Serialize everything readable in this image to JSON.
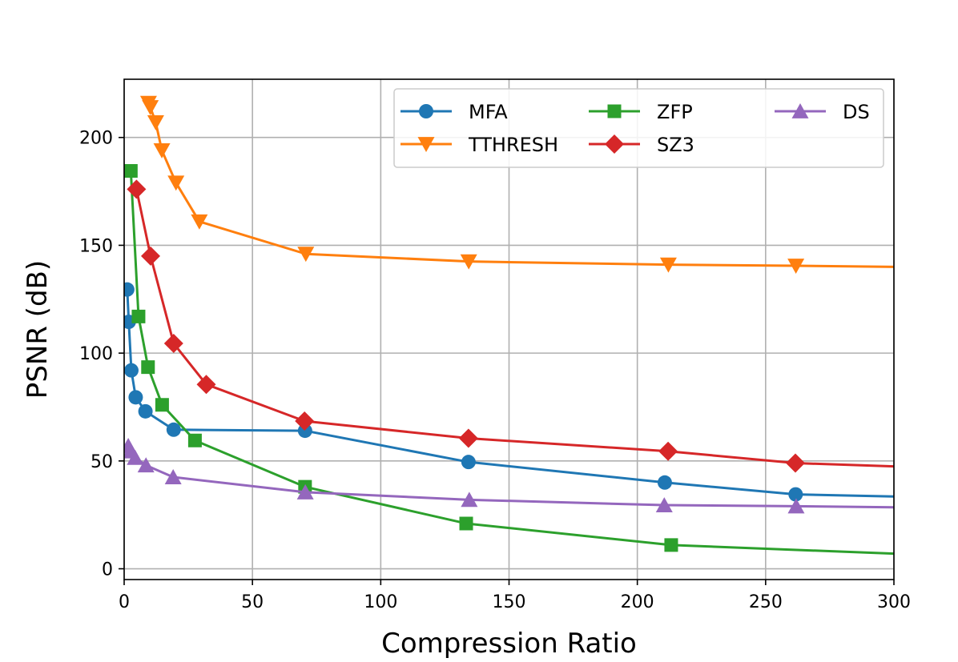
{
  "chart_data": {
    "type": "line",
    "title": "",
    "xlabel": "Compression Ratio",
    "ylabel": "PSNR (dB)",
    "xlim": [
      0,
      300
    ],
    "ylim": [
      -5,
      227
    ],
    "xticks": [
      0,
      50,
      100,
      150,
      200,
      250,
      300
    ],
    "yticks": [
      0,
      50,
      100,
      150,
      200
    ],
    "grid": true,
    "legend_position": "top-right",
    "legend_columns": 3,
    "series": [
      {
        "name": "MFA",
        "color": "#1f77b4",
        "marker": "circle",
        "x": [
          1.2,
          1.8,
          2.8,
          4.5,
          8.3,
          19.3,
          70.5,
          134.2,
          210.7,
          261.7,
          300
        ],
        "y": [
          129.5,
          114.5,
          92,
          79.5,
          73,
          64.5,
          64,
          49.5,
          40,
          34.5,
          33.5
        ],
        "markers_shown": [
          true,
          true,
          true,
          true,
          true,
          true,
          true,
          true,
          true,
          true,
          false
        ]
      },
      {
        "name": "TTHRESH",
        "color": "#ff7f0e",
        "marker": "triangle-down",
        "x": [
          9.5,
          10.2,
          12.3,
          14.7,
          20.2,
          29.3,
          70.8,
          134.3,
          212.1,
          261.8,
          300
        ],
        "y": [
          216,
          214,
          207,
          194,
          179,
          161,
          146,
          142.5,
          141,
          140.5,
          140
        ],
        "markers_shown": [
          true,
          true,
          true,
          true,
          true,
          true,
          true,
          true,
          true,
          true,
          false
        ]
      },
      {
        "name": "ZFP",
        "color": "#2ca02c",
        "marker": "square",
        "x": [
          2.6,
          5.6,
          9.3,
          14.8,
          27.6,
          70.5,
          133.3,
          213.2,
          300
        ],
        "y": [
          184.5,
          117,
          93.5,
          76,
          59.5,
          38,
          21,
          11,
          7
        ],
        "markers_shown": [
          true,
          true,
          true,
          true,
          true,
          true,
          true,
          true,
          false
        ]
      },
      {
        "name": "SZ3",
        "color": "#d62728",
        "marker": "diamond",
        "x": [
          4.8,
          10.3,
          19.3,
          32.0,
          70.3,
          134.2,
          212.0,
          261.6,
          300
        ],
        "y": [
          176,
          145,
          104.5,
          85.5,
          68.5,
          60.5,
          54.5,
          49,
          47.5
        ],
        "markers_shown": [
          true,
          true,
          true,
          true,
          true,
          true,
          true,
          true,
          false
        ]
      },
      {
        "name": "DS",
        "color": "#9467bd",
        "marker": "triangle-up",
        "x": [
          1.6,
          2.5,
          4.3,
          8.5,
          19.1,
          70.6,
          134.5,
          210.5,
          261.9,
          300
        ],
        "y": [
          57,
          54.5,
          51.5,
          48,
          42.5,
          35.5,
          32,
          29.5,
          29,
          28.5
        ],
        "markers_shown": [
          true,
          true,
          true,
          true,
          true,
          true,
          true,
          true,
          true,
          false
        ]
      }
    ]
  }
}
